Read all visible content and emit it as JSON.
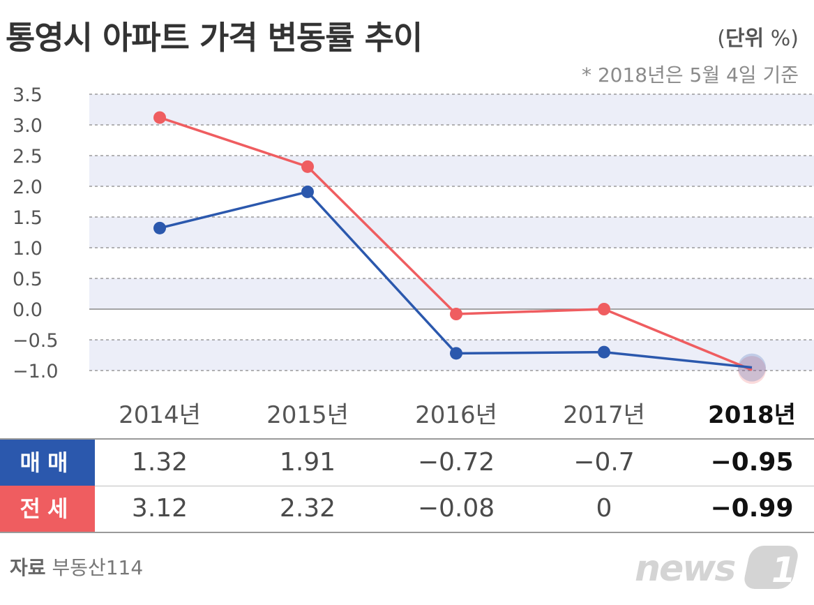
{
  "title": "통영시 아파트 가격 변동률 추이",
  "unit_bold": "단위",
  "unit_symbol": "%",
  "note": "* 2018년은 5월 4일 기준",
  "source_label": "자료",
  "source_name": "부동산114",
  "logo_text": "news1",
  "colors": {
    "sale": "#2b58ad",
    "jeonse": "#ef5d60",
    "band": "#eceef8"
  },
  "table": {
    "sale_label": "매매",
    "jeonse_label": "전세",
    "sale_values": [
      "1.32",
      "1.91",
      "−0.72",
      "−0.7",
      "−0.95"
    ],
    "jeonse_values": [
      "3.12",
      "2.32",
      "−0.08",
      "0",
      "−0.99"
    ]
  },
  "chart_data": {
    "type": "line",
    "categories": [
      "2014년",
      "2015년",
      "2016년",
      "2017년",
      "2018년"
    ],
    "y_ticks": [
      "3.5",
      "3.0",
      "2.5",
      "2.0",
      "1.5",
      "1.0",
      "0.5",
      "0.0",
      "−0.5",
      "−1.0"
    ],
    "ylim": [
      -1.0,
      3.5
    ],
    "grid": true,
    "series": [
      {
        "name": "매매",
        "values": [
          1.32,
          1.91,
          -0.72,
          -0.7,
          -0.95
        ],
        "color": "#2b58ad"
      },
      {
        "name": "전세",
        "values": [
          3.12,
          2.32,
          -0.08,
          0,
          -0.99
        ],
        "color": "#ef5d60"
      }
    ]
  }
}
